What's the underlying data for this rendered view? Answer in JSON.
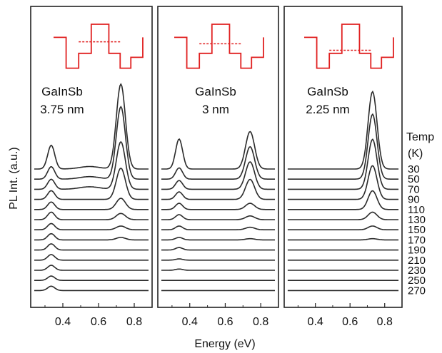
{
  "figure": {
    "ylabel": "PL Int. (a.u.)",
    "xlabel": "Energy (eV)",
    "temp_header": "Temp",
    "temp_unit": "(K)",
    "temperatures": [
      "30",
      "50",
      "70",
      "90",
      "110",
      "130",
      "150",
      "170",
      "190",
      "210",
      "230",
      "250",
      "270"
    ],
    "colors": {
      "curve": "#2a2a2a",
      "inset": "#e02020",
      "frame": "#222222"
    }
  },
  "chart_data": [
    {
      "type": "line",
      "panel_title": "GaInSb",
      "panel_subtitle": "3.75 nm",
      "xlim": [
        0.22,
        0.9
      ],
      "xticks": [
        "0.4",
        "0.6",
        "0.8"
      ],
      "xtick_values": [
        0.4,
        0.6,
        0.8
      ],
      "inset": {
        "barrier_level": 0.62
      },
      "series": [
        {
          "temperature": 30,
          "peak1_amp": 0.19,
          "peak2_amp": 0.68
        },
        {
          "temperature": 50,
          "peak1_amp": 0.1,
          "peak2_amp": 0.58
        },
        {
          "temperature": 70,
          "peak1_amp": 0.08,
          "peak2_amp": 0.38
        },
        {
          "temperature": 90,
          "peak1_amp": 0.07,
          "peak2_amp": 0.25
        },
        {
          "temperature": 110,
          "peak1_amp": 0.06,
          "peak2_amp": 0.09
        },
        {
          "temperature": 130,
          "peak1_amp": 0.06,
          "peak2_amp": 0.05
        },
        {
          "temperature": 150,
          "peak1_amp": 0.05,
          "peak2_amp": 0.03
        },
        {
          "temperature": 170,
          "peak1_amp": 0.05,
          "peak2_amp": 0.02
        },
        {
          "temperature": 190,
          "peak1_amp": 0.05,
          "peak2_amp": 0.0
        },
        {
          "temperature": 210,
          "peak1_amp": 0.045,
          "peak2_amp": 0.0
        },
        {
          "temperature": 230,
          "peak1_amp": 0.04,
          "peak2_amp": 0.0
        },
        {
          "temperature": 250,
          "peak1_amp": 0.035,
          "peak2_amp": 0.0
        },
        {
          "temperature": 270,
          "peak1_amp": 0.035,
          "peak2_amp": 0.0
        }
      ],
      "peak1_center": 0.335,
      "peak2_center": 0.725
    },
    {
      "type": "line",
      "panel_title": "GaInSb",
      "panel_subtitle": "3 nm",
      "xlim": [
        0.22,
        0.9
      ],
      "xticks": [
        "0.4",
        "0.6",
        "0.8"
      ],
      "xtick_values": [
        0.4,
        0.6,
        0.8
      ],
      "inset": {
        "barrier_level": 0.58
      },
      "series": [
        {
          "temperature": 30,
          "peak1_amp": 0.24,
          "peak2_amp": 0.3
        },
        {
          "temperature": 50,
          "peak1_amp": 0.09,
          "peak2_amp": 0.26
        },
        {
          "temperature": 70,
          "peak1_amp": 0.07,
          "peak2_amp": 0.22
        },
        {
          "temperature": 90,
          "peak1_amp": 0.06,
          "peak2_amp": 0.16
        },
        {
          "temperature": 110,
          "peak1_amp": 0.05,
          "peak2_amp": 0.05
        },
        {
          "temperature": 130,
          "peak1_amp": 0.04,
          "peak2_amp": 0.03
        },
        {
          "temperature": 150,
          "peak1_amp": 0.03,
          "peak2_amp": 0.02
        },
        {
          "temperature": 170,
          "peak1_amp": 0.02,
          "peak2_amp": 0.01
        },
        {
          "temperature": 190,
          "peak1_amp": 0.02,
          "peak2_amp": 0.0
        },
        {
          "temperature": 210,
          "peak1_amp": 0.01,
          "peak2_amp": 0.0
        },
        {
          "temperature": 230,
          "peak1_amp": 0.01,
          "peak2_amp": 0.0
        },
        {
          "temperature": 250,
          "peak1_amp": 0.0,
          "peak2_amp": 0.0
        },
        {
          "temperature": 270,
          "peak1_amp": 0.0,
          "peak2_amp": 0.0
        }
      ],
      "peak1_center": 0.34,
      "peak2_center": 0.74
    },
    {
      "type": "line",
      "panel_title": "GaInSb",
      "panel_subtitle": "2.25 nm",
      "xlim": [
        0.22,
        0.9
      ],
      "xticks": [
        "0.4",
        "0.6",
        "0.8"
      ],
      "xtick_values": [
        0.4,
        0.6,
        0.8
      ],
      "inset": {
        "barrier_level": 0.45
      },
      "series": [
        {
          "temperature": 30,
          "peak1_amp": 0.0,
          "peak2_amp": 0.62
        },
        {
          "temperature": 50,
          "peak1_amp": 0.0,
          "peak2_amp": 0.52
        },
        {
          "temperature": 70,
          "peak1_amp": 0.0,
          "peak2_amp": 0.4
        },
        {
          "temperature": 90,
          "peak1_amp": 0.0,
          "peak2_amp": 0.27
        },
        {
          "temperature": 110,
          "peak1_amp": 0.0,
          "peak2_amp": 0.15
        },
        {
          "temperature": 130,
          "peak1_amp": 0.0,
          "peak2_amp": 0.06
        },
        {
          "temperature": 150,
          "peak1_amp": 0.0,
          "peak2_amp": 0.03
        },
        {
          "temperature": 170,
          "peak1_amp": 0.0,
          "peak2_amp": 0.01
        },
        {
          "temperature": 190,
          "peak1_amp": 0.0,
          "peak2_amp": 0.0
        },
        {
          "temperature": 210,
          "peak1_amp": 0.0,
          "peak2_amp": 0.0
        },
        {
          "temperature": 230,
          "peak1_amp": 0.0,
          "peak2_amp": 0.0
        },
        {
          "temperature": 250,
          "peak1_amp": 0.0,
          "peak2_amp": 0.0
        },
        {
          "temperature": 270,
          "peak1_amp": 0.0,
          "peak2_amp": 0.0
        }
      ],
      "peak1_center": 0.34,
      "peak2_center": 0.73
    }
  ]
}
